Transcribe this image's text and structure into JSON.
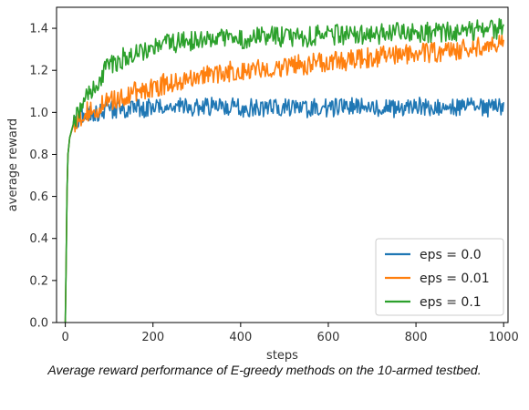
{
  "caption": "Average reward performance of E-greedy methods on the 10-armed testbed.",
  "chart_data": {
    "type": "line",
    "xlabel": "steps",
    "ylabel": "average reward",
    "xlim": [
      -20,
      1010
    ],
    "ylim": [
      0.0,
      1.5
    ],
    "xticks": [
      0,
      200,
      400,
      600,
      800,
      1000
    ],
    "yticks": [
      0.0,
      0.2,
      0.4,
      0.6,
      0.8,
      1.0,
      1.2,
      1.4
    ],
    "xtick_labels": [
      "0",
      "200",
      "400",
      "600",
      "800",
      "1000"
    ],
    "ytick_labels": [
      "0.0",
      "0.2",
      "0.4",
      "0.6",
      "0.8",
      "1.0",
      "1.2",
      "1.4"
    ],
    "grid": false,
    "legend_position": "lower-right",
    "series": [
      {
        "name": "eps = 0.0",
        "color": "#1f77b4",
        "x": [
          0,
          5,
          10,
          20,
          30,
          50,
          75,
          100,
          150,
          200,
          250,
          300,
          350,
          400,
          450,
          500,
          550,
          600,
          650,
          700,
          750,
          800,
          850,
          900,
          950,
          1000
        ],
        "y": [
          0.0,
          0.78,
          0.88,
          0.95,
          0.97,
          0.99,
          1.0,
          1.01,
          1.02,
          1.02,
          1.03,
          1.02,
          1.03,
          1.02,
          1.02,
          1.03,
          1.02,
          1.02,
          1.03,
          1.02,
          1.02,
          1.03,
          1.02,
          1.03,
          1.02,
          1.02
        ]
      },
      {
        "name": "eps = 0.01",
        "color": "#ff7f0e",
        "x": [
          0,
          5,
          10,
          20,
          30,
          50,
          75,
          100,
          150,
          200,
          250,
          300,
          350,
          400,
          450,
          500,
          550,
          600,
          650,
          700,
          750,
          800,
          850,
          900,
          950,
          1000
        ],
        "y": [
          0.0,
          0.78,
          0.88,
          0.95,
          0.97,
          1.0,
          1.02,
          1.05,
          1.09,
          1.12,
          1.15,
          1.17,
          1.19,
          1.2,
          1.21,
          1.22,
          1.23,
          1.24,
          1.25,
          1.26,
          1.27,
          1.28,
          1.29,
          1.3,
          1.31,
          1.32
        ]
      },
      {
        "name": "eps = 0.1",
        "color": "#2ca02c",
        "x": [
          0,
          5,
          10,
          20,
          30,
          50,
          75,
          100,
          150,
          200,
          250,
          300,
          350,
          400,
          450,
          500,
          550,
          600,
          650,
          700,
          750,
          800,
          850,
          900,
          950,
          1000
        ],
        "y": [
          0.0,
          0.78,
          0.88,
          0.96,
          1.0,
          1.07,
          1.15,
          1.22,
          1.28,
          1.31,
          1.33,
          1.34,
          1.35,
          1.35,
          1.36,
          1.36,
          1.36,
          1.37,
          1.37,
          1.37,
          1.38,
          1.38,
          1.38,
          1.39,
          1.39,
          1.4
        ]
      }
    ]
  }
}
